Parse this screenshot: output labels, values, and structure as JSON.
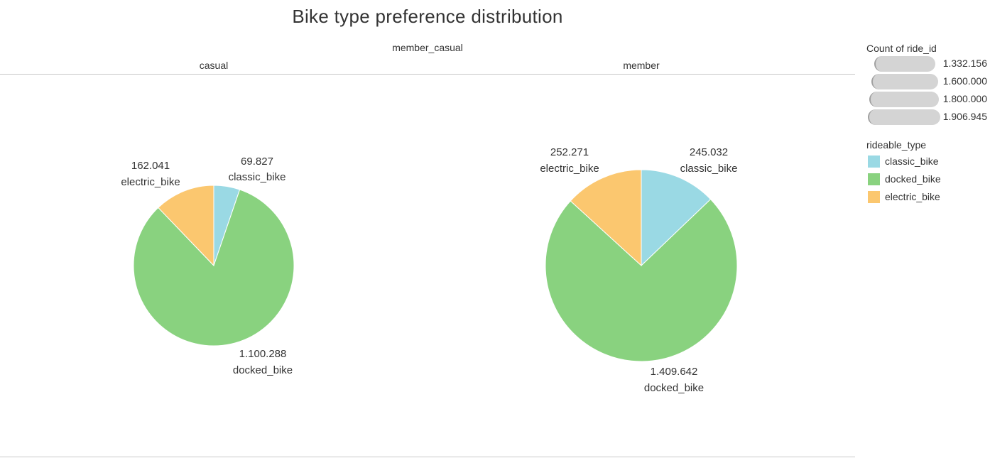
{
  "title": "Bike type preference distribution",
  "header_field": "member_casual",
  "colors": {
    "classic_bike": "#9ad9e4",
    "docked_bike": "#89d27f",
    "electric_bike": "#fbc76f"
  },
  "legend_size": {
    "title": "Count of ride_id",
    "items": [
      "1.332.156",
      "1.600.000",
      "1.800.000",
      "1.906.945"
    ]
  },
  "legend_color": {
    "title": "rideable_type",
    "items": [
      "classic_bike",
      "docked_bike",
      "electric_bike"
    ]
  },
  "chart_data": [
    {
      "type": "pie",
      "panel": "casual",
      "slices": [
        {
          "category": "classic_bike",
          "value": 69827,
          "label_value": "69.827"
        },
        {
          "category": "docked_bike",
          "value": 1100288,
          "label_value": "1.100.288"
        },
        {
          "category": "electric_bike",
          "value": 162041,
          "label_value": "162.041"
        }
      ]
    },
    {
      "type": "pie",
      "panel": "member",
      "slices": [
        {
          "category": "classic_bike",
          "value": 245032,
          "label_value": "245.032"
        },
        {
          "category": "docked_bike",
          "value": 1409642,
          "label_value": "1.409.642"
        },
        {
          "category": "electric_bike",
          "value": 252271,
          "label_value": "252.271"
        }
      ]
    }
  ]
}
